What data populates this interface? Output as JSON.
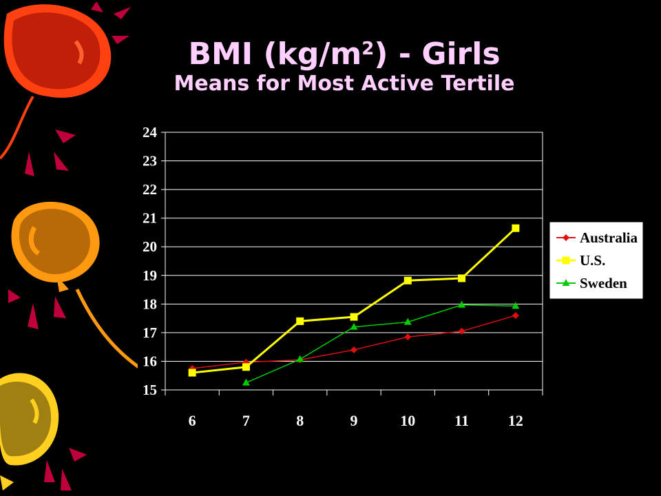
{
  "title": {
    "main_prefix": "BMI (kg/m",
    "main_superscript": "2",
    "main_suffix": ") - Girls",
    "subtitle": "Means for Most Active Tertile"
  },
  "colors": {
    "background": "#000000",
    "title": "#ffd0ff",
    "axis_text": "#ffffff",
    "grid": "#ffffff",
    "australia": "#e01010",
    "us": "#ffff00",
    "sweden": "#00cc00"
  },
  "chart_data": {
    "type": "line",
    "title": "BMI (kg/m2) - Girls Means for Most Active Tertile",
    "xlabel": "",
    "ylabel": "",
    "categories": [
      "6",
      "7",
      "8",
      "9",
      "10",
      "11",
      "12"
    ],
    "ylim": [
      15,
      24
    ],
    "yticks": [
      "15",
      "16",
      "17",
      "18",
      "19",
      "20",
      "21",
      "22",
      "23",
      "24"
    ],
    "grid": true,
    "legend_position": "right",
    "series": [
      {
        "name": "Australia",
        "marker": "diamond",
        "color": "#e01010",
        "values": [
          15.75,
          15.97,
          16.05,
          16.4,
          16.85,
          17.05,
          17.6
        ]
      },
      {
        "name": "U.S.",
        "marker": "square",
        "color": "#ffff00",
        "values": [
          15.6,
          15.8,
          17.4,
          17.55,
          18.82,
          18.9,
          20.65
        ]
      },
      {
        "name": "Sweden",
        "marker": "triangle",
        "color": "#00cc00",
        "values": [
          null,
          15.25,
          16.07,
          17.2,
          17.37,
          17.97,
          17.93
        ]
      }
    ]
  }
}
